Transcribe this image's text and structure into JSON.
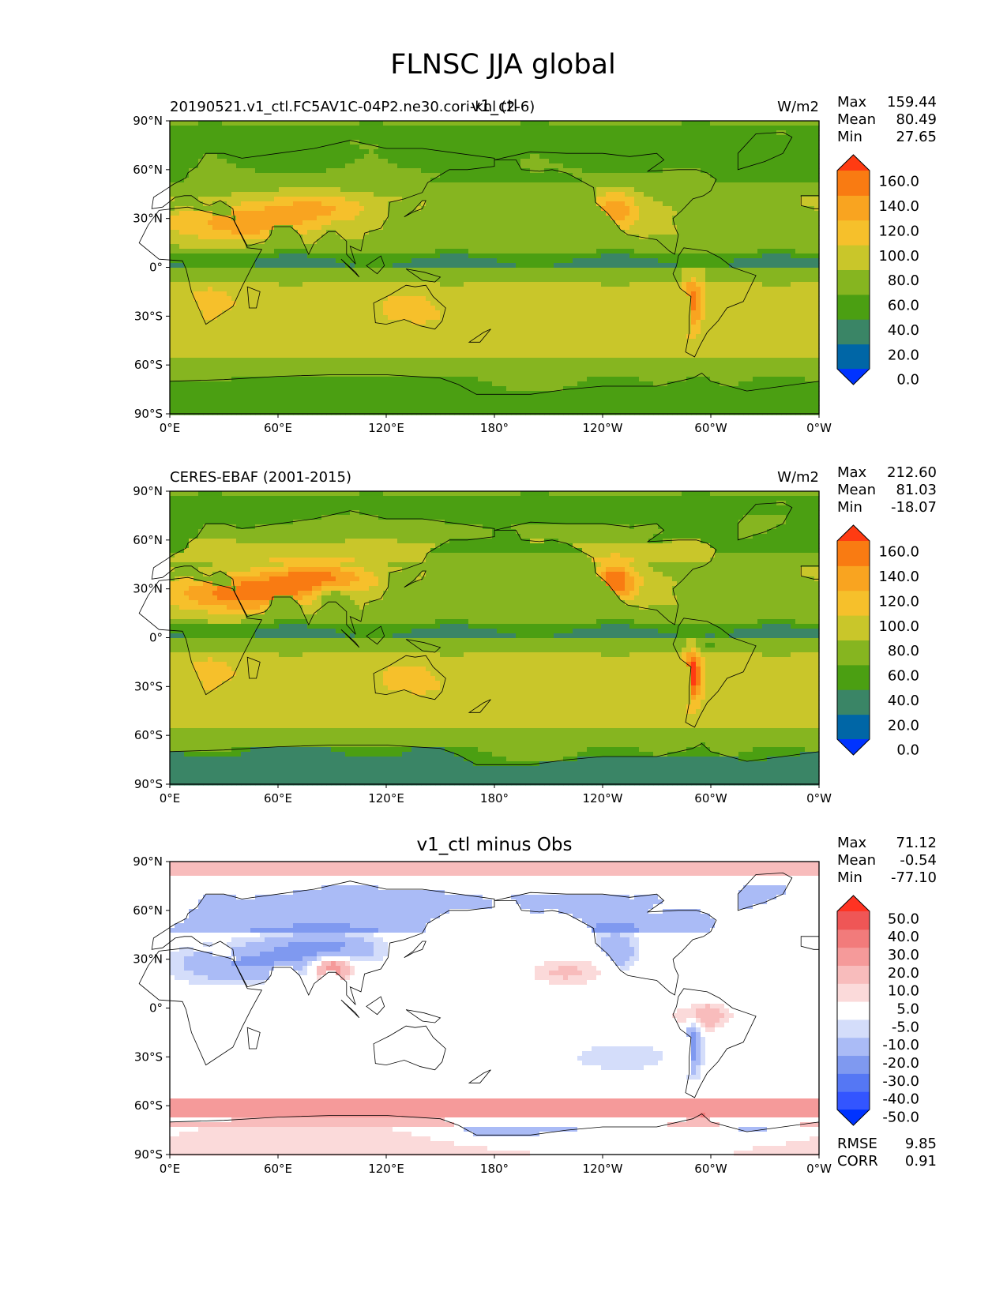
{
  "title": "FLNSC JJA global",
  "x_ticks": [
    "0°E",
    "60°E",
    "120°E",
    "180°",
    "120°W",
    "60°W",
    "0°W"
  ],
  "y_ticks": [
    "90°N",
    "60°N",
    "30°N",
    "0°",
    "30°S",
    "60°S",
    "90°S"
  ],
  "colors": {
    "abs_levels": [
      "#0033ff",
      "#0066a6",
      "#3a8566",
      "#4b9f12",
      "#86b520",
      "#c9c62a",
      "#f6c02b",
      "#f9a420",
      "#f97b12",
      "#ff3b12"
    ],
    "diff_levels": [
      "#0033ff",
      "#3355ff",
      "#5577f4",
      "#7f99f0",
      "#aabbf6",
      "#d4ddfa",
      "#ffffff",
      "#fbdada",
      "#f8bcbc",
      "#f59a9a",
      "#f27b7b",
      "#ef5656",
      "#ff3322"
    ],
    "coastline": "#000000"
  },
  "chart_data": [
    {
      "type": "heatmap",
      "title_left": "20190521.v1_ctl.FC5AV1C-04P2.ne30.cori-knl (2-6)",
      "title_center": "v1_ctl",
      "units": "W/m2",
      "stats": [
        {
          "label": "Max",
          "value": "159.44"
        },
        {
          "label": "Mean",
          "value": "80.49"
        },
        {
          "label": "Min",
          "value": "27.65"
        }
      ],
      "colorbar_levels": [
        "160.0",
        "140.0",
        "120.0",
        "100.0",
        "80.0",
        "60.0",
        "40.0",
        "20.0",
        "0.0"
      ],
      "xlim": [
        0,
        360
      ],
      "ylim": [
        -90,
        90
      ],
      "extend": "both"
    },
    {
      "type": "heatmap",
      "title_left": "CERES-EBAF (2001-2015)",
      "title_center": "",
      "units": "W/m2",
      "stats": [
        {
          "label": "Max",
          "value": "212.60"
        },
        {
          "label": "Mean",
          "value": "81.03"
        },
        {
          "label": "Min",
          "value": "-18.07"
        }
      ],
      "colorbar_levels": [
        "160.0",
        "140.0",
        "120.0",
        "100.0",
        "80.0",
        "60.0",
        "40.0",
        "20.0",
        "0.0"
      ],
      "xlim": [
        0,
        360
      ],
      "ylim": [
        -90,
        90
      ],
      "extend": "both"
    },
    {
      "type": "heatmap",
      "title_left": "",
      "title_center": "v1_ctl minus Obs",
      "units": "",
      "stats": [
        {
          "label": "Max",
          "value": "71.12"
        },
        {
          "label": "Mean",
          "value": "-0.54"
        },
        {
          "label": "Min",
          "value": "-77.10"
        }
      ],
      "colorbar_levels": [
        "50.0",
        "40.0",
        "30.0",
        "20.0",
        "10.0",
        "5.0",
        "-5.0",
        "-10.0",
        "-20.0",
        "-30.0",
        "-40.0",
        "-50.0"
      ],
      "metrics": [
        {
          "label": "RMSE",
          "value": "9.85"
        },
        {
          "label": "CORR",
          "value": "0.91"
        }
      ],
      "xlim": [
        0,
        360
      ],
      "ylim": [
        -90,
        90
      ],
      "extend": "both"
    }
  ]
}
